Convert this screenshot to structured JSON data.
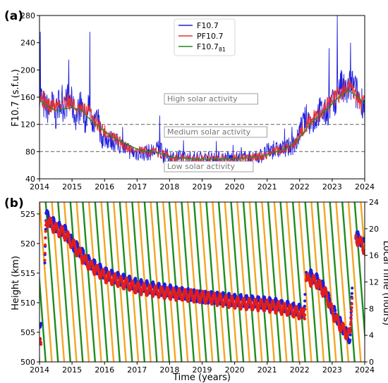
{
  "chart_data": [
    {
      "panel_label": "(a)",
      "type": "line",
      "ylabel": "F10.7 (s.f.u.)",
      "xlim": [
        2014,
        2024
      ],
      "ylim": [
        40,
        280
      ],
      "x_ticks": [
        "2014",
        "2015",
        "2016",
        "2017",
        "2018",
        "2019",
        "2020",
        "2021",
        "2022",
        "2023",
        "2024"
      ],
      "y_ticks": [
        "40",
        "80",
        "120",
        "160",
        "200",
        "240",
        "280"
      ],
      "threshold_lines": [
        80,
        120
      ],
      "annotations": [
        "High solar activity",
        "Medium solar activity",
        "Low solar activity"
      ],
      "legend_position": "upper center",
      "series": [
        {
          "name": "F10.7",
          "color": "#1f1fdc",
          "x": [
            2014.0,
            2014.1,
            2014.2,
            2014.3,
            2014.4,
            2014.5,
            2014.6,
            2014.7,
            2014.8,
            2014.9,
            2015.0,
            2015.1,
            2015.2,
            2015.3,
            2015.4,
            2015.5,
            2015.6,
            2015.7,
            2015.8,
            2015.9,
            2016.0,
            2016.3,
            2016.6,
            2016.9,
            2017.2,
            2017.5,
            2017.7,
            2017.8,
            2018.0,
            2018.5,
            2019.0,
            2019.5,
            2020.0,
            2020.5,
            2020.9,
            2021.0,
            2021.3,
            2021.6,
            2021.9,
            2022.0,
            2022.2,
            2022.4,
            2022.6,
            2022.8,
            2023.0,
            2023.1,
            2023.2,
            2023.4,
            2023.6,
            2023.8,
            2024.0
          ],
          "y": [
            170,
            150,
            145,
            140,
            150,
            130,
            155,
            145,
            150,
            160,
            150,
            130,
            140,
            150,
            120,
            150,
            110,
            120,
            130,
            100,
            100,
            95,
            85,
            78,
            78,
            80,
            85,
            75,
            72,
            70,
            70,
            70,
            70,
            70,
            75,
            80,
            82,
            85,
            92,
            110,
            130,
            120,
            140,
            135,
            150,
            145,
            180,
            165,
            180,
            160,
            150
          ],
          "peaks": [
            [
              2014.02,
              256
            ],
            [
              2014.9,
              215
            ],
            [
              2015.55,
              256
            ],
            [
              2017.7,
              133
            ],
            [
              2022.9,
              232
            ],
            [
              2023.16,
              280
            ],
            [
              2023.56,
              240
            ]
          ]
        },
        {
          "name": "PF10.7",
          "color": "#e83030",
          "x": [
            2014.0,
            2014.3,
            2014.6,
            2014.9,
            2015.2,
            2015.5,
            2015.8,
            2016.0,
            2016.3,
            2016.6,
            2016.9,
            2017.2,
            2017.5,
            2017.8,
            2018.0,
            2018.5,
            2019.0,
            2019.5,
            2020.0,
            2020.5,
            2020.9,
            2021.2,
            2021.5,
            2021.8,
            2022.0,
            2022.3,
            2022.6,
            2022.9,
            2023.2,
            2023.5,
            2023.8,
            2024.0
          ],
          "y": [
            165,
            145,
            150,
            155,
            140,
            140,
            120,
            110,
            100,
            90,
            82,
            80,
            80,
            76,
            72,
            70,
            70,
            70,
            70,
            71,
            74,
            80,
            84,
            90,
            105,
            125,
            135,
            150,
            165,
            175,
            155,
            150
          ]
        },
        {
          "name": "F10.7₈₁",
          "color": "#1e8c1e",
          "x": [
            2014.0,
            2014.5,
            2015.0,
            2015.3,
            2015.6,
            2016.0,
            2016.3,
            2016.6,
            2016.9,
            2017.2,
            2017.5,
            2017.8,
            2018.0,
            2018.5,
            2019.0,
            2019.5,
            2020.0,
            2020.5,
            2021.0,
            2021.3,
            2021.6,
            2022.0,
            2022.3,
            2022.6,
            2022.9,
            2023.2,
            2023.5,
            2023.8,
            2024.0
          ],
          "y": [
            155,
            140,
            145,
            140,
            125,
            110,
            100,
            93,
            86,
            80,
            80,
            76,
            72,
            70,
            69,
            69,
            70,
            71,
            75,
            80,
            85,
            100,
            120,
            133,
            145,
            160,
            170,
            160,
            150
          ]
        }
      ]
    },
    {
      "panel_label": "(b)",
      "type": "scatter",
      "xlabel": "Time (years)",
      "ylabel": "Height (km)",
      "ylabel_right": "Local Time (hours)",
      "xlim": [
        2014,
        2024
      ],
      "ylim": [
        500,
        527
      ],
      "ylim_right": [
        0,
        24
      ],
      "x_ticks": [
        "2014",
        "2015",
        "2016",
        "2017",
        "2018",
        "2019",
        "2020",
        "2021",
        "2022",
        "2023",
        "2024"
      ],
      "y_ticks": [
        "500",
        "505",
        "510",
        "515",
        "520",
        "525"
      ],
      "y_ticks_right": [
        "0",
        "4",
        "8",
        "12",
        "16",
        "20",
        "24"
      ],
      "series": [
        {
          "name": "Height (blue)",
          "color": "#1e1ee0",
          "x": [
            2014.02,
            2014.1,
            2014.2,
            2014.3,
            2014.5,
            2014.8,
            2015.0,
            2015.2,
            2015.5,
            2016.0,
            2016.5,
            2017.0,
            2017.5,
            2018.0,
            2019.0,
            2020.0,
            2021.0,
            2021.5,
            2021.8,
            2022.15,
            2022.2,
            2022.5,
            2022.8,
            2023.0,
            2023.2,
            2023.4,
            2023.55,
            2023.7,
            2023.9,
            2024.0
          ],
          "y": [
            506,
            505,
            525,
            524,
            523,
            522,
            520,
            519,
            517,
            515,
            514,
            513,
            512.5,
            512,
            511,
            510.5,
            510,
            509.5,
            509,
            508.5,
            515,
            514,
            512,
            509,
            507,
            505,
            504,
            521.5,
            520.5,
            519.5
          ]
        },
        {
          "name": "Height (red)",
          "color": "#e01e1e",
          "x": [
            2014.02,
            2014.1,
            2014.2,
            2014.3,
            2014.5,
            2014.8,
            2015.0,
            2015.2,
            2015.5,
            2016.0,
            2016.5,
            2017.0,
            2017.5,
            2018.0,
            2019.0,
            2020.0,
            2021.0,
            2021.5,
            2021.8,
            2022.15,
            2022.2,
            2022.5,
            2022.8,
            2023.0,
            2023.2,
            2023.4,
            2023.55,
            2023.7,
            2023.9,
            2024.0
          ],
          "y": [
            504,
            503,
            524,
            523.5,
            522.5,
            521.5,
            520,
            518.5,
            516.5,
            514.5,
            513.5,
            512.5,
            512,
            511.5,
            511,
            510,
            509.5,
            509,
            508.5,
            508,
            514,
            513.5,
            511.5,
            508.5,
            506.5,
            505,
            504.5,
            521,
            520,
            519
          ]
        },
        {
          "name": "Local Time (orange)",
          "color": "#f5a623",
          "axis": "right",
          "x": [
            2014.0,
            2024.0
          ],
          "period_years": 0.38,
          "description": "repeating descending sawtooth 24h → 0h"
        },
        {
          "name": "Local Time (green)",
          "color": "#1e8c1e",
          "axis": "right",
          "x": [
            2014.0,
            2024.0
          ],
          "period_years": 0.38,
          "description": "repeating descending sawtooth 24h → 0h, offset 12h"
        }
      ]
    }
  ]
}
